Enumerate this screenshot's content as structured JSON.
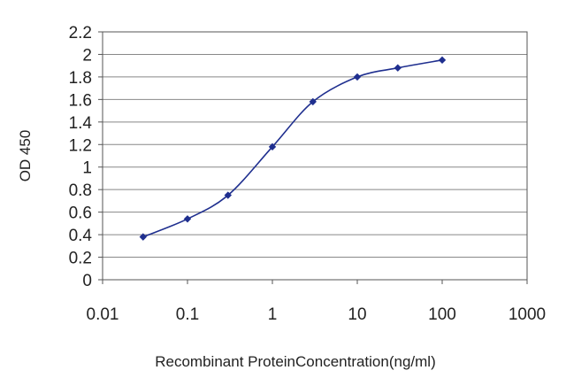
{
  "chart_data": {
    "type": "line",
    "title": "",
    "xlabel": "Recombinant ProteinConcentration(ng/ml)",
    "ylabel": "OD 450",
    "x_scale": "log",
    "xlim": [
      0.01,
      1000
    ],
    "ylim": [
      0,
      2.2
    ],
    "x_ticks": [
      "0.01",
      "0.1",
      "1",
      "10",
      "100",
      "1000"
    ],
    "y_ticks": [
      "0",
      "0.2",
      "0.4",
      "0.6",
      "0.8",
      "1",
      "1.2",
      "1.4",
      "1.6",
      "1.8",
      "2",
      "2.2"
    ],
    "grid": "horizontal",
    "series": [
      {
        "color": "#1f2f8f",
        "marker": "diamond",
        "x": [
          0.03,
          0.1,
          0.3,
          1,
          3,
          10,
          30,
          100
        ],
        "y": [
          0.38,
          0.54,
          0.75,
          1.18,
          1.58,
          1.8,
          1.88,
          1.95
        ]
      }
    ],
    "colors": {
      "plot_background": "#ffffff",
      "gridline": "#888888",
      "axis": "#555555"
    }
  }
}
